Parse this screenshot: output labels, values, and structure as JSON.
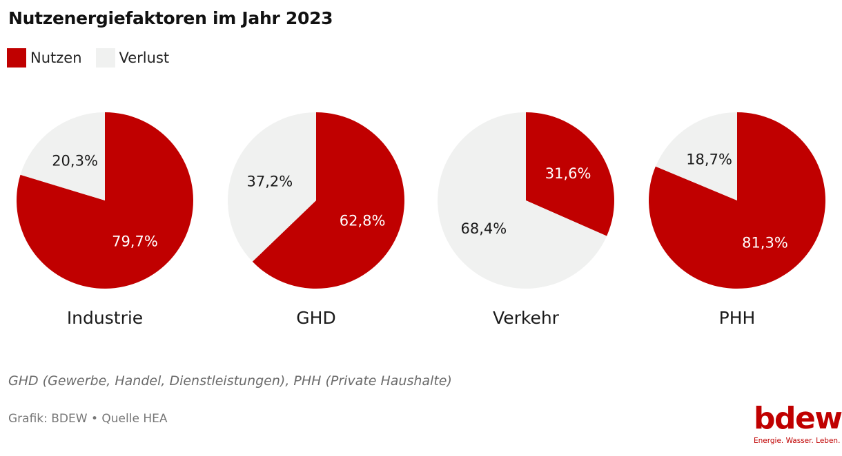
{
  "title": "Nutzenergiefaktoren im Jahr 2023",
  "legend": [
    {
      "label": "Nutzen",
      "color": "#c00000"
    },
    {
      "label": "Verlust",
      "color": "#f0f1f0"
    }
  ],
  "chart_data": {
    "type": "pie",
    "title": "Nutzenergiefaktoren im Jahr 2023",
    "series_labels": [
      "Nutzen",
      "Verlust"
    ],
    "colors": {
      "Nutzen": "#c00000",
      "Verlust": "#f0f1f0"
    },
    "legend_position": "top-left",
    "pies": [
      {
        "category": "Industrie",
        "Nutzen": 79.7,
        "Verlust": 20.3,
        "Nutzen_label": "79,7%",
        "Verlust_label": "20,3%"
      },
      {
        "category": "GHD",
        "Nutzen": 62.8,
        "Verlust": 37.2,
        "Nutzen_label": "62,8%",
        "Verlust_label": "37,2%"
      },
      {
        "category": "Verkehr",
        "Nutzen": 31.6,
        "Verlust": 68.4,
        "Nutzen_label": "31,6%",
        "Verlust_label": "68,4%"
      },
      {
        "category": "PHH",
        "Nutzen": 81.3,
        "Verlust": 18.7,
        "Nutzen_label": "81,3%",
        "Verlust_label": "18,7%"
      }
    ]
  },
  "footnote": "GHD (Gewerbe, Handel, Dienstleistungen), PHH (Private Haushalte)",
  "credit": "Grafik: BDEW • Quelle HEA",
  "logo": {
    "wordmark": "bdew",
    "tagline": "Energie. Wasser. Leben."
  }
}
